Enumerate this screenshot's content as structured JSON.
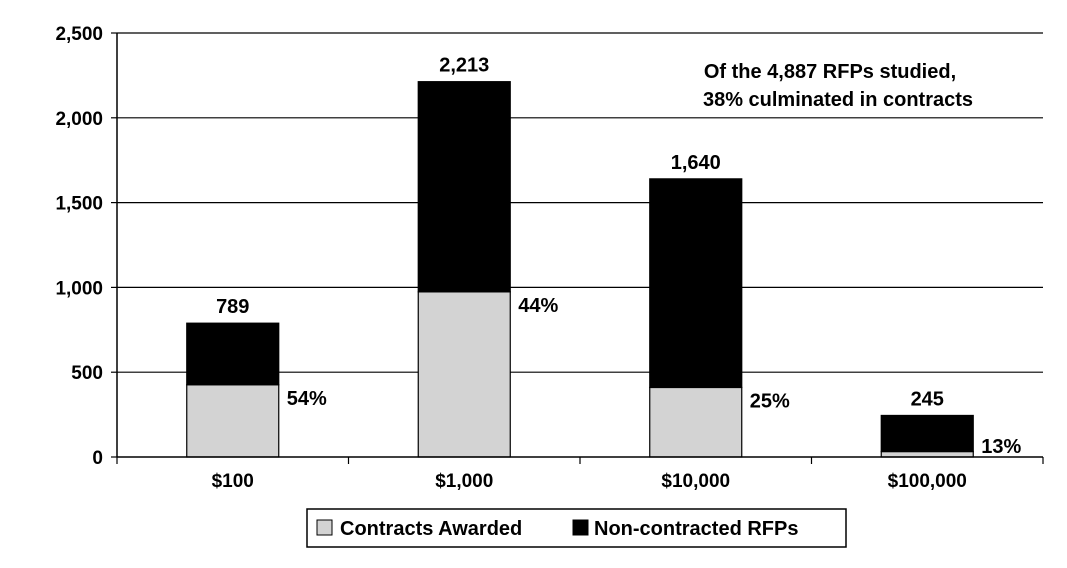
{
  "chart_data": {
    "type": "bar",
    "stacked": true,
    "categories": [
      "$100",
      "$1,000",
      "$10,000",
      "$100,000"
    ],
    "series": [
      {
        "name": "Contracts Awarded",
        "color": "#d3d3d3",
        "values": [
          426,
          974,
          410,
          32
        ]
      },
      {
        "name": "Non-contracted RFPs",
        "color": "#000000",
        "values": [
          363,
          1239,
          1230,
          213
        ]
      }
    ],
    "totals": [
      789,
      2213,
      1640,
      245
    ],
    "total_labels": [
      "789",
      "2,213",
      "1,640",
      "245"
    ],
    "percent_labels": [
      "54%",
      "44%",
      "25%",
      "13%"
    ],
    "ylim": [
      0,
      2500
    ],
    "yticks": [
      0,
      500,
      1000,
      1500,
      2000,
      2500
    ],
    "ytick_labels": [
      "0",
      "500",
      "1,000",
      "1,500",
      "2,000",
      "2,500"
    ],
    "annotation": [
      "Of the 4,887 RFPs studied,",
      "38% culminated in contracts"
    ],
    "legend_position": "bottom",
    "grid": true,
    "title": "",
    "xlabel": "",
    "ylabel": ""
  }
}
